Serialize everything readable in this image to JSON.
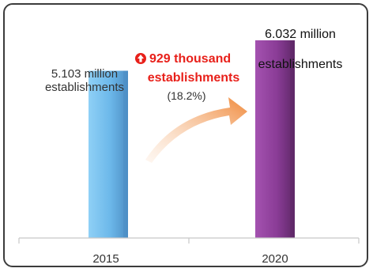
{
  "chart_data": {
    "type": "bar",
    "categories": [
      "2015",
      "2020"
    ],
    "values": [
      5.103,
      6.032
    ],
    "unit": "million establishments",
    "data_labels": [
      [
        "5.103 million",
        "establishments"
      ],
      [
        "6.032 million",
        "establishments"
      ]
    ],
    "annotation": {
      "change_line1": "929 thousand",
      "change_line2": "establishments",
      "percent": "(18.2%)"
    },
    "colors": {
      "bar_2015": "#6cb8ea",
      "bar_2015_side": "#4d8ec4",
      "bar_2020": "#8a3c96",
      "bar_2020_side": "#5f2868",
      "arrow": "#f08a3c",
      "increase": "#e8201a"
    },
    "ylim": [
      0,
      6.9
    ]
  }
}
